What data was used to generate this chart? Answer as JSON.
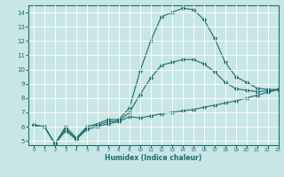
{
  "xlabel": "Humidex (Indice chaleur)",
  "ylabel": "",
  "xlim": [
    -0.5,
    23
  ],
  "ylim": [
    4.7,
    14.5
  ],
  "yticks": [
    5,
    6,
    7,
    8,
    9,
    10,
    11,
    12,
    13,
    14
  ],
  "xticks": [
    0,
    1,
    2,
    3,
    4,
    5,
    6,
    7,
    8,
    9,
    10,
    11,
    12,
    13,
    14,
    15,
    16,
    17,
    18,
    19,
    20,
    21,
    22,
    23
  ],
  "bg_color": "#c8e6e6",
  "line_color": "#1e6b6b",
  "grid_color": "#ffffff",
  "line1_x": [
    0,
    1,
    2,
    3,
    4,
    5,
    6,
    7,
    8,
    9,
    10,
    11,
    12,
    13,
    14,
    15,
    16,
    17,
    18,
    19,
    20,
    21,
    22,
    23
  ],
  "line1_y": [
    6.1,
    6.0,
    4.8,
    6.0,
    5.2,
    6.0,
    6.2,
    6.5,
    6.5,
    7.3,
    9.9,
    12.0,
    13.7,
    14.0,
    14.3,
    14.2,
    13.5,
    12.2,
    10.5,
    9.5,
    9.1,
    8.7,
    8.6,
    8.6
  ],
  "line2_x": [
    0,
    1,
    2,
    3,
    4,
    5,
    6,
    7,
    8,
    9,
    10,
    11,
    12,
    13,
    14,
    15,
    16,
    17,
    18,
    19,
    20,
    21,
    22,
    23
  ],
  "line2_y": [
    6.1,
    6.0,
    4.8,
    5.7,
    5.1,
    5.8,
    6.0,
    6.2,
    6.35,
    6.7,
    6.6,
    6.75,
    6.9,
    7.0,
    7.1,
    7.2,
    7.35,
    7.5,
    7.65,
    7.8,
    8.0,
    8.2,
    8.4,
    8.6
  ],
  "line3_x": [
    0,
    1,
    2,
    3,
    4,
    5,
    6,
    7,
    8,
    9,
    10,
    11,
    12,
    13,
    14,
    15,
    16,
    17,
    18,
    19,
    20,
    21,
    22,
    23
  ],
  "line3_y": [
    6.1,
    6.0,
    4.8,
    5.85,
    5.15,
    5.9,
    6.1,
    6.35,
    6.4,
    7.0,
    8.25,
    9.4,
    10.3,
    10.5,
    10.7,
    10.7,
    10.4,
    9.85,
    9.1,
    8.65,
    8.55,
    8.45,
    8.5,
    8.6
  ]
}
